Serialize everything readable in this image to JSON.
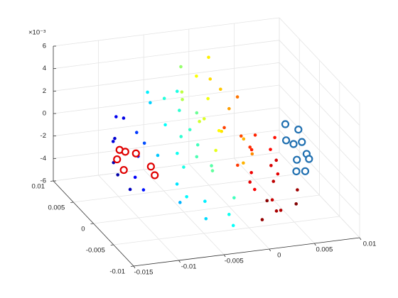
{
  "chart_data": {
    "type": "scatter3d",
    "z_multiplier": "×10⁻³",
    "xlim": [
      -0.015,
      0.01
    ],
    "xticks": [
      -0.015,
      -0.01,
      -0.005,
      0,
      0.005,
      0.01
    ],
    "ylim": [
      -0.01,
      0.01
    ],
    "yticks": [
      -0.01,
      -0.005,
      0,
      0.005,
      0.01
    ],
    "zlim": [
      -6,
      6
    ],
    "zticks": [
      -6,
      -4,
      -2,
      0,
      2,
      4,
      6
    ],
    "grid": true,
    "colormap": "jet",
    "series": [
      {
        "marker": "dot",
        "x": [
          -0.011,
          -0.0102,
          -0.0095,
          -0.009,
          -0.0085,
          -0.0105,
          -0.008,
          -0.0098,
          -0.0088,
          -0.0075,
          -0.0112,
          -0.0093,
          -0.007,
          -0.0062,
          -0.0055,
          -0.0048,
          -0.004,
          -0.0035,
          -0.0028,
          -0.002,
          -0.0065,
          -0.0058,
          -0.0045,
          -0.0038,
          -0.003,
          -0.0022,
          -0.0015,
          -0.0072,
          -0.005,
          -0.0042,
          -0.0033,
          -0.0025,
          -0.006,
          -0.0018,
          -0.001,
          -0.0052,
          -0.0025,
          -0.0015,
          -0.0005,
          0.0005,
          0.0015,
          0.0025,
          -0.002,
          -0.0008,
          0.0008,
          0.002,
          0.003,
          -0.003,
          0.0,
          0.0012,
          -0.0012,
          0.0035,
          0.0018,
          -0.0002,
          0.0005,
          0.0015,
          0.0025,
          0.0035,
          0.0045,
          0.0055,
          0.001,
          0.002,
          0.003,
          0.004,
          0.005,
          0.006,
          0.0008,
          0.0018,
          0.0028,
          0.0038,
          0.0048,
          0.0022,
          0.0032,
          0.0042,
          0.0012,
          0.0052
        ],
        "y": [
          0.004,
          0.0055,
          0.002,
          0.006,
          0.0035,
          0.001,
          0.005,
          0.0068,
          0.0015,
          0.0042,
          0.0025,
          0.0072,
          0.002,
          -0.001,
          0.0035,
          0.0005,
          -0.003,
          0.0045,
          0.0015,
          -0.0045,
          0.005,
          -0.0025,
          0.006,
          -0.0005,
          0.003,
          -0.006,
          0.001,
          -0.004,
          -0.0055,
          0.0025,
          0.0055,
          -0.0015,
          0.0068,
          0.004,
          -0.0035,
          0.0012,
          0.006,
          0.004,
          0.007,
          0.003,
          0.0055,
          0.002,
          0.0075,
          0.0015,
          0.0065,
          0.0045,
          0.001,
          0.005,
          0.0025,
          0.0078,
          0.0035,
          0.0058,
          0.0005,
          0.0048,
          -0.001,
          -0.003,
          0.0,
          -0.005,
          -0.002,
          0.001,
          -0.006,
          0.0015,
          -0.004,
          0.0025,
          -0.0005,
          -0.0035,
          0.003,
          -0.0015,
          -0.0055,
          -0.0025,
          0.0005,
          -0.0045,
          0.002,
          -0.001,
          -0.0025,
          -0.005
        ],
        "z": [
          -2.5,
          -1.0,
          -3.2,
          0.5,
          -2.0,
          -3.8,
          -0.5,
          -1.8,
          -4.2,
          -1.2,
          -3.0,
          0.2,
          -1.5,
          -3.0,
          0.5,
          -2.2,
          -4.0,
          1.2,
          -0.8,
          -4.8,
          2.0,
          -3.6,
          1.8,
          -1.0,
          0.0,
          -5.2,
          -2.6,
          -3.4,
          -4.5,
          -0.3,
          2.5,
          -2.0,
          2.2,
          1.0,
          -3.8,
          -1.2,
          1.5,
          0.2,
          3.0,
          -0.5,
          2.2,
          -1.0,
          3.8,
          -1.5,
          2.8,
          0.8,
          -2.0,
          2.6,
          -0.2,
          4.2,
          0.6,
          1.2,
          -2.5,
          1.8,
          -2.0,
          -3.5,
          -1.2,
          -4.8,
          -2.8,
          -0.8,
          -5.0,
          -0.5,
          -4.2,
          -1.0,
          -2.2,
          -3.8,
          -0.2,
          -2.6,
          -4.6,
          -3.2,
          -1.6,
          -4.0,
          -1.8,
          -2.4,
          -3.0,
          -4.4
        ],
        "c": [
          0.05,
          0.08,
          0.12,
          0.1,
          0.15,
          0.06,
          0.18,
          0.09,
          0.14,
          0.2,
          0.04,
          0.11,
          0.32,
          0.35,
          0.38,
          0.4,
          0.36,
          0.42,
          0.44,
          0.39,
          0.33,
          0.37,
          0.41,
          0.45,
          0.43,
          0.38,
          0.46,
          0.3,
          0.34,
          0.42,
          0.4,
          0.47,
          0.36,
          0.48,
          0.44,
          0.39,
          0.55,
          0.58,
          0.62,
          0.65,
          0.68,
          0.7,
          0.52,
          0.6,
          0.66,
          0.72,
          0.74,
          0.56,
          0.63,
          0.64,
          0.59,
          0.76,
          0.7,
          0.61,
          0.82,
          0.88,
          0.85,
          0.95,
          0.9,
          0.86,
          0.98,
          0.8,
          0.93,
          0.84,
          0.92,
          0.97,
          0.81,
          0.89,
          0.96,
          0.94,
          0.87,
          0.99,
          0.83,
          0.91,
          0.9,
          1.0
        ]
      },
      {
        "marker": "circle",
        "color": "#e00000",
        "x": [
          -0.0115,
          -0.011,
          -0.0105,
          -0.0112,
          -0.0095,
          -0.008,
          -0.0082
        ],
        "y": [
          0.002,
          0.0025,
          0.0022,
          0.001,
          0.0018,
          0.0005,
          0.001
        ],
        "z": [
          -1.4,
          -0.8,
          -0.9,
          -2.0,
          -1.0,
          -2.6,
          -2.0
        ]
      },
      {
        "marker": "circle",
        "color": "#1f6fb0",
        "x": [
          0.008,
          0.0085,
          0.0075,
          0.009,
          0.007,
          0.0082,
          0.0088,
          0.0078,
          0.0092,
          0.0072
        ],
        "y": [
          0.004,
          0.001,
          0.0,
          0.003,
          -0.001,
          -0.0005,
          0.0005,
          0.0015,
          0.0008,
          0.002
        ],
        "z": [
          -1.0,
          -1.5,
          -2.6,
          -1.2,
          -3.2,
          -3.5,
          -2.4,
          -1.8,
          -3.0,
          -1.6
        ]
      }
    ]
  }
}
